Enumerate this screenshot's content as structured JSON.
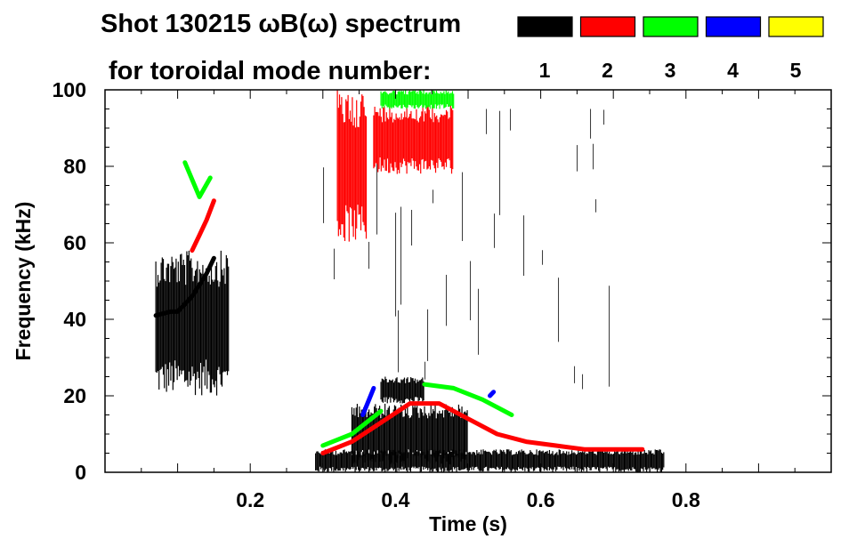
{
  "header": {
    "title_line1": "Shot 130215 ωB(ω) spectrum",
    "title_line2": "for toroidal mode number:"
  },
  "legend": {
    "placement": "top-right",
    "entries": [
      {
        "label": "1",
        "color": "#000000"
      },
      {
        "label": "2",
        "color": "#ff0000"
      },
      {
        "label": "3",
        "color": "#00ff00"
      },
      {
        "label": "4",
        "color": "#0000ff"
      },
      {
        "label": "5",
        "color": "#ffff00"
      }
    ]
  },
  "chart_data": {
    "type": "heatmap",
    "title": "Shot 130215 ωB(ω) spectrum",
    "subtitle": "for toroidal mode number:",
    "xlabel": "Time (s)",
    "ylabel": "Frequency (kHz)",
    "xlim": [
      0.0,
      1.0
    ],
    "ylim": [
      0,
      100
    ],
    "xticks": [
      0.2,
      0.4,
      0.6,
      0.8
    ],
    "xtick_labels": [
      "0.2",
      "0.4",
      "0.6",
      "0.8"
    ],
    "yticks": [
      0,
      20,
      40,
      60,
      80,
      100
    ],
    "ytick_labels": [
      "0",
      "20",
      "40",
      "60",
      "80",
      "100"
    ],
    "grid": false,
    "series": [
      {
        "name": "1",
        "color": "#000000",
        "regions": [
          {
            "t": [
              0.07,
              0.17
            ],
            "f": [
              20,
              58
            ]
          },
          {
            "t": [
              0.29,
              0.77
            ],
            "f": [
              0,
              6
            ]
          },
          {
            "t": [
              0.34,
              0.5
            ],
            "f": [
              2,
              18
            ]
          },
          {
            "t": [
              0.38,
              0.44
            ],
            "f": [
              18,
              25
            ]
          },
          {
            "t": [
              0.29,
              0.72
            ],
            "f": [
              20,
              95
            ],
            "sparse": true
          }
        ],
        "tracks": [
          {
            "t": [
              0.07,
              0.09,
              0.1,
              0.11,
              0.12,
              0.13,
              0.14,
              0.15
            ],
            "f": [
              41,
              42,
              42,
              44,
              46,
              49,
              52,
              56
            ]
          }
        ]
      },
      {
        "name": "2",
        "color": "#ff0000",
        "regions": [
          {
            "t": [
              0.32,
              0.36
            ],
            "f": [
              60,
              100
            ]
          },
          {
            "t": [
              0.37,
              0.48
            ],
            "f": [
              78,
              96
            ]
          }
        ],
        "tracks": [
          {
            "t": [
              0.12,
              0.13,
              0.14,
              0.15
            ],
            "f": [
              58,
              62,
              66,
              71
            ]
          },
          {
            "t": [
              0.3,
              0.34,
              0.38,
              0.42,
              0.46,
              0.5,
              0.54,
              0.58,
              0.62,
              0.66,
              0.7,
              0.74
            ],
            "f": [
              5,
              8,
              13,
              18,
              18,
              14,
              10,
              8,
              7,
              6,
              6,
              6
            ]
          }
        ]
      },
      {
        "name": "3",
        "color": "#00ff00",
        "regions": [
          {
            "t": [
              0.38,
              0.48
            ],
            "f": [
              95,
              100
            ]
          }
        ],
        "tracks": [
          {
            "t": [
              0.3,
              0.34,
              0.38
            ],
            "f": [
              7,
              10,
              16
            ]
          },
          {
            "t": [
              0.44,
              0.48,
              0.52,
              0.56
            ],
            "f": [
              23,
              22,
              19,
              15
            ]
          },
          {
            "t": [
              0.11,
              0.13,
              0.145
            ],
            "f": [
              81,
              72,
              77
            ]
          }
        ]
      },
      {
        "name": "4",
        "color": "#0000ff",
        "tracks": [
          {
            "t": [
              0.355,
              0.37
            ],
            "f": [
              15,
              22
            ]
          },
          {
            "t": [
              0.53,
              0.535
            ],
            "f": [
              20,
              21
            ]
          }
        ]
      },
      {
        "name": "5",
        "color": "#ffff00",
        "tracks": []
      }
    ]
  }
}
